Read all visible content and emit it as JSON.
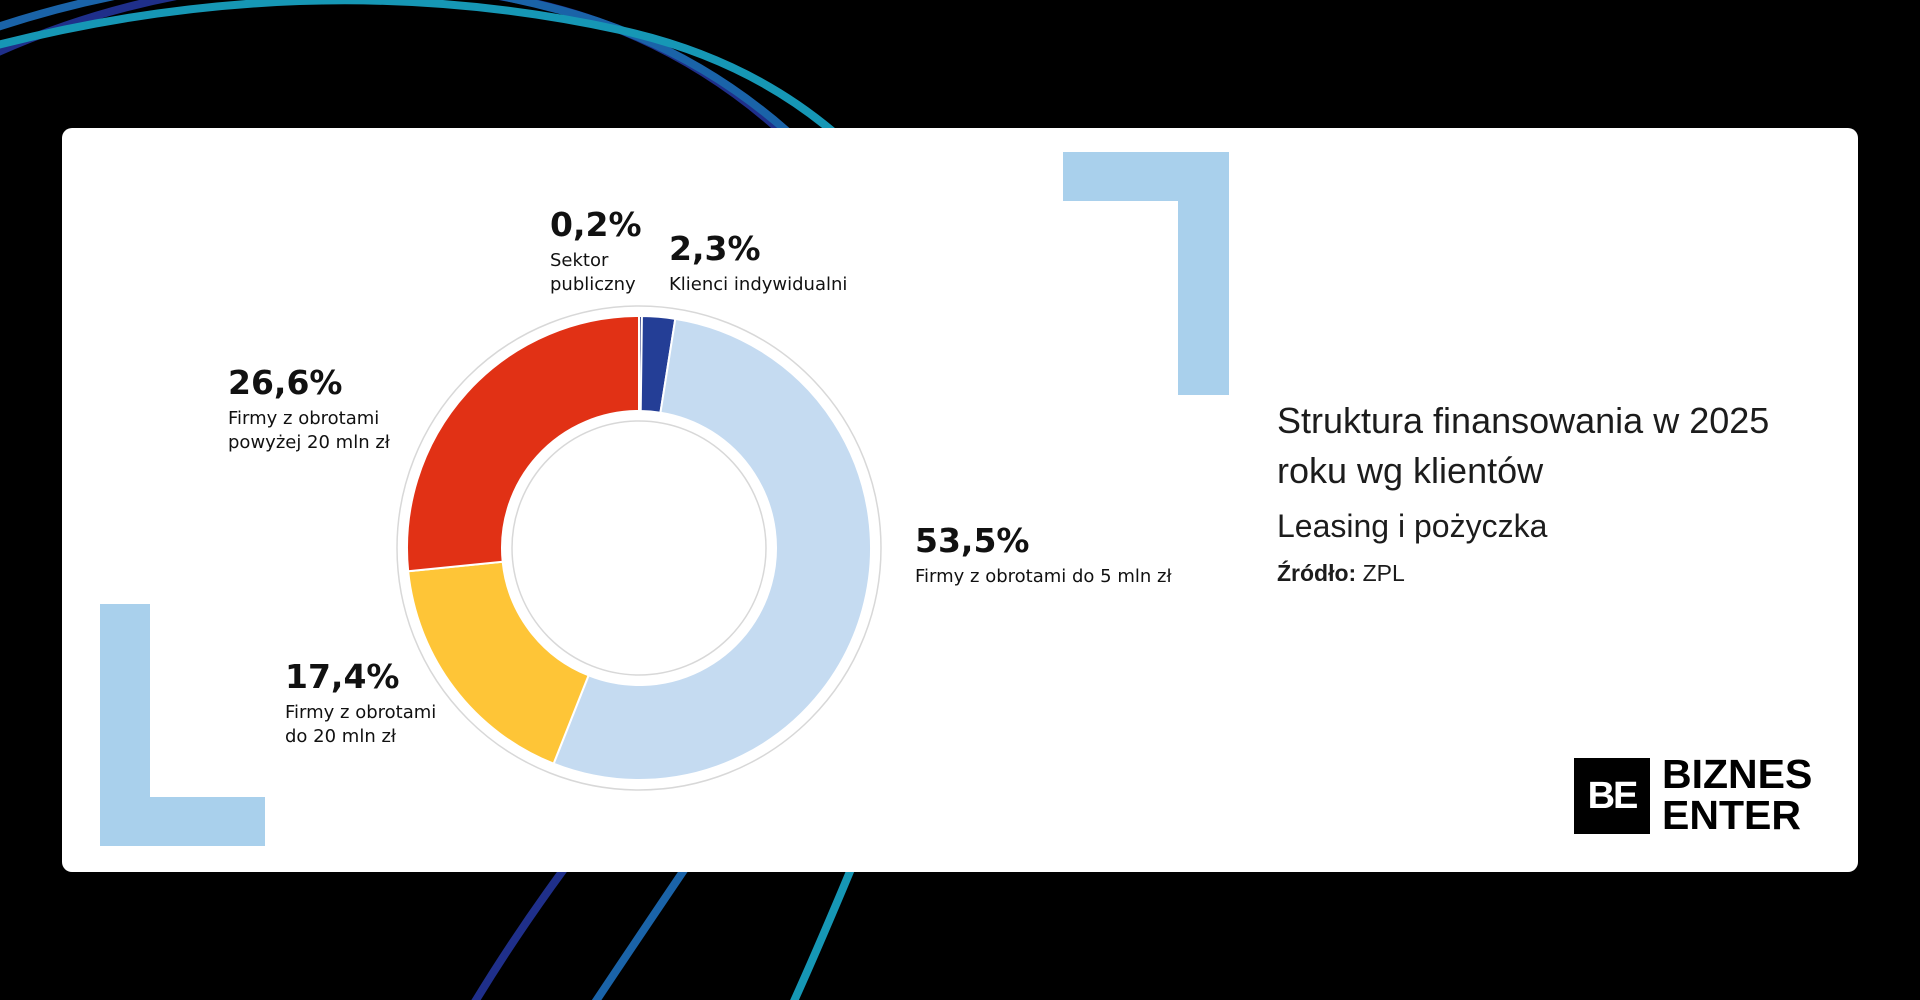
{
  "chart_data": {
    "type": "pie",
    "style": "donut",
    "title": "Struktura finansowania w 2025 roku wg klientów",
    "subtitle": "Leasing i pożyczka",
    "source_label": "Źródło:",
    "source_value": "ZPL",
    "slices": [
      {
        "label_lines": [
          "Sektor",
          "publiczny"
        ],
        "value": 0.2,
        "value_label": "0,2%",
        "color": "#1f2f7a"
      },
      {
        "label_lines": [
          "Klienci indywidualni"
        ],
        "value": 2.3,
        "value_label": "2,3%",
        "color": "#243e96"
      },
      {
        "label_lines": [
          "Firmy z obrotami do 5 mln zł"
        ],
        "value": 53.5,
        "value_label": "53,5%",
        "color": "#c5dbf1"
      },
      {
        "label_lines": [
          "Firmy z obrotami",
          "do 20 mln zł"
        ],
        "value": 17.4,
        "value_label": "17,4%",
        "color": "#fec537"
      },
      {
        "label_lines": [
          "Firmy z obrotami",
          "powyżej 20 mln zł"
        ],
        "value": 26.6,
        "value_label": "26,6%",
        "color": "#e13115"
      }
    ],
    "start_angle_deg": 0,
    "direction": "clockwise"
  },
  "brand": {
    "mark": "BE",
    "line1": "BIZNES",
    "line2": "ENTER"
  },
  "colors": {
    "background": "#000000",
    "card": "#ffffff",
    "accent_light_blue": "#a9d0ec"
  }
}
